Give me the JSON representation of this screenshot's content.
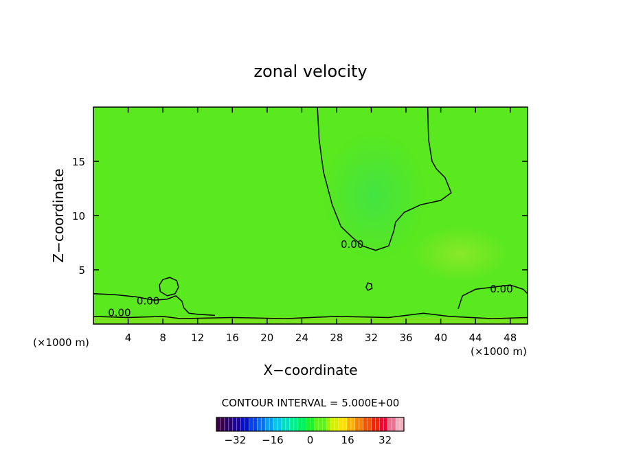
{
  "chart_data": {
    "type": "heatmap",
    "title": "zonal velocity",
    "xlabel": "X−coordinate",
    "ylabel": "Z−coordinate",
    "x_unit_left": "(×1000 m)",
    "x_unit_right": "(×1000 m)",
    "xlim": [
      0,
      50
    ],
    "ylim": [
      0,
      20
    ],
    "xticks": [
      4,
      8,
      12,
      16,
      20,
      24,
      28,
      32,
      36,
      40,
      44,
      48
    ],
    "yticks": [
      5,
      10,
      15
    ],
    "field_description_values": {
      "background": 1.0,
      "upper_region_min": -1.5,
      "low_level_range": [
        -4,
        4
      ]
    },
    "contour_interval_text": "CONTOUR INTERVAL = 5.000E+00",
    "contour_labels": [
      {
        "text": "0.00",
        "x": 29.8,
        "z": 7.3
      },
      {
        "text": "0.00",
        "x": 47.0,
        "z": 3.2
      },
      {
        "text": "0.00",
        "x": 6.3,
        "z": 2.1
      },
      {
        "text": "0.00",
        "x": 3.0,
        "z": 1.0
      }
    ],
    "contour_lines": [
      {
        "name": "zero-upper",
        "points": [
          [
            25.8,
            20
          ],
          [
            26.0,
            17
          ],
          [
            26.5,
            14
          ],
          [
            27.5,
            11
          ],
          [
            28.5,
            9
          ],
          [
            29.8,
            8
          ],
          [
            31,
            7.2
          ],
          [
            32.5,
            6.8
          ],
          [
            34,
            7.2
          ],
          [
            34.6,
            8.6
          ],
          [
            34.8,
            9.4
          ],
          [
            35.8,
            10.3
          ],
          [
            37.7,
            11.0
          ],
          [
            40,
            11.4
          ],
          [
            41.2,
            12.1
          ],
          [
            40.5,
            13.5
          ],
          [
            39.5,
            14.3
          ],
          [
            39.0,
            15.0
          ],
          [
            38.6,
            17
          ],
          [
            38.5,
            20
          ]
        ]
      },
      {
        "name": "zero-low-left",
        "points": [
          [
            0,
            2.8
          ],
          [
            2.5,
            2.7
          ],
          [
            5,
            2.5
          ],
          [
            7,
            2.2
          ],
          [
            8.5,
            2.3
          ],
          [
            9.5,
            2.6
          ],
          [
            10.2,
            2.1
          ],
          [
            10.4,
            1.5
          ],
          [
            11,
            1.0
          ],
          [
            12,
            0.9
          ],
          [
            14,
            0.8
          ]
        ]
      },
      {
        "name": "zero-right",
        "points": [
          [
            42,
            1.4
          ],
          [
            42.5,
            2.6
          ],
          [
            44,
            3.2
          ],
          [
            46,
            3.4
          ],
          [
            48,
            3.6
          ],
          [
            49.5,
            3.2
          ],
          [
            50,
            2.8
          ]
        ]
      },
      {
        "name": "zero-circle",
        "points": [
          [
            8.5,
            2.6
          ],
          [
            7.7,
            3.0
          ],
          [
            7.6,
            3.6
          ],
          [
            8.0,
            4.1
          ],
          [
            8.8,
            4.3
          ],
          [
            9.6,
            4.0
          ],
          [
            9.8,
            3.4
          ],
          [
            9.4,
            2.8
          ],
          [
            8.5,
            2.6
          ]
        ]
      },
      {
        "name": "zero-blob-32",
        "points": [
          [
            31.6,
            3.1
          ],
          [
            31.4,
            3.4
          ],
          [
            31.6,
            3.8
          ],
          [
            32.0,
            3.7
          ],
          [
            32.1,
            3.3
          ],
          [
            31.6,
            3.1
          ]
        ]
      },
      {
        "name": "zero-surface",
        "points": [
          [
            0,
            0.7
          ],
          [
            4,
            0.6
          ],
          [
            8,
            0.7
          ],
          [
            10,
            0.5
          ],
          [
            16,
            0.6
          ],
          [
            22,
            0.5
          ],
          [
            28,
            0.7
          ],
          [
            34,
            0.6
          ],
          [
            38,
            1.0
          ],
          [
            41,
            0.7
          ],
          [
            46,
            0.5
          ],
          [
            50,
            0.6
          ]
        ]
      }
    ],
    "colorbar": {
      "tick_labels": [
        "−32",
        "−16",
        "0",
        "16",
        "32"
      ],
      "tick_values": [
        -32,
        -16,
        0,
        16,
        32
      ],
      "range": [
        -40,
        40
      ],
      "colors": [
        "#3a004a",
        "#2a0070",
        "#1a00a0",
        "#0010d8",
        "#0040ff",
        "#0070ff",
        "#00a0ff",
        "#00c8f0",
        "#00e0c0",
        "#00f090",
        "#00f060",
        "#20f030",
        "#60f020",
        "#a0f000",
        "#d8f000",
        "#ffe000",
        "#ffb000",
        "#ff8000",
        "#ff5000",
        "#ff2000",
        "#ff0030",
        "#f07090",
        "#f0b0c0"
      ]
    }
  }
}
